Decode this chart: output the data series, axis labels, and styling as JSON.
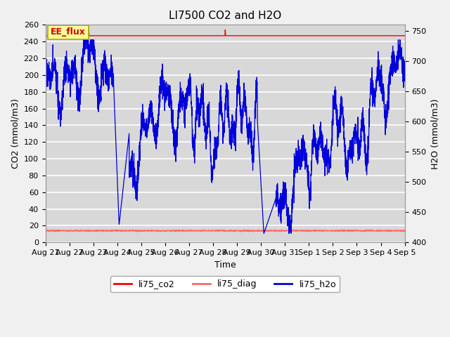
{
  "title": "LI7500 CO2 and H2O",
  "xlabel": "Time",
  "ylabel_left": "CO2 (mmol/m3)",
  "ylabel_right": "H2O (mmol/m3)",
  "annotation": "EE_flux",
  "ylim_left": [
    0,
    260
  ],
  "ylim_right": [
    400,
    760
  ],
  "yticks_left": [
    0,
    20,
    40,
    60,
    80,
    100,
    120,
    140,
    160,
    180,
    200,
    220,
    240,
    260
  ],
  "yticks_right": [
    400,
    450,
    500,
    550,
    600,
    650,
    700,
    750
  ],
  "co2_value": 247,
  "diag_value": 14,
  "plot_bg": "#d8d8d8",
  "fig_bg": "#f0f0f0",
  "grid_color": "#ffffff",
  "co2_color": "#ff0000",
  "diag_color": "#ff6666",
  "h2o_color": "#0000dd",
  "annotation_bg": "#ffff99",
  "annotation_border": "#aaaa00",
  "annotation_text_color": "#cc0000",
  "xtick_labels": [
    "Aug 21",
    "Aug 22",
    "Aug 23",
    "Aug 24",
    "Aug 25",
    "Aug 26",
    "Aug 27",
    "Aug 28",
    "Aug 29",
    "Aug 30",
    "Aug 31",
    "Sep 1",
    "Sep 2",
    "Sep 3",
    "Sep 4",
    "Sep 5"
  ],
  "n_points": 3000
}
